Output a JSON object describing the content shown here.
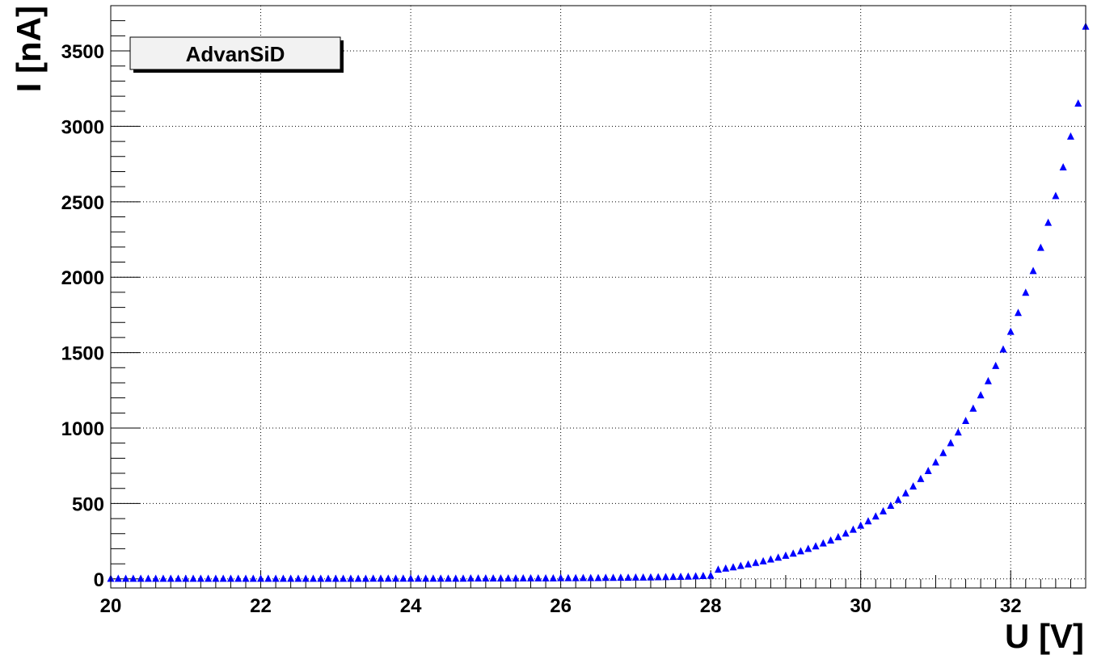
{
  "chart_data": {
    "type": "scatter",
    "xlabel": "U [V]",
    "ylabel": "I [nA]",
    "xlim": [
      20,
      33
    ],
    "ylim": [
      -60,
      3800
    ],
    "x_ticks": [
      20,
      22,
      24,
      26,
      28,
      30,
      32
    ],
    "y_ticks": [
      0,
      500,
      1000,
      1500,
      2000,
      2500,
      3000,
      3500
    ],
    "grid": true,
    "legend": {
      "position": "top-left",
      "entries": [
        "AdvanSiD"
      ]
    },
    "marker_color": "#0000ff",
    "series": [
      {
        "name": "AdvanSiD",
        "marker": "triangle",
        "x": [
          20.0,
          20.1,
          20.2,
          20.3,
          20.4,
          20.5,
          20.6,
          20.7,
          20.8,
          20.9,
          21.0,
          21.1,
          21.2,
          21.3,
          21.4,
          21.5,
          21.6,
          21.7,
          21.8,
          21.9,
          22.0,
          22.1,
          22.2,
          22.3,
          22.4,
          22.5,
          22.6,
          22.7,
          22.8,
          22.9,
          23.0,
          23.1,
          23.2,
          23.3,
          23.4,
          23.5,
          23.6,
          23.7,
          23.8,
          23.9,
          24.0,
          24.1,
          24.2,
          24.3,
          24.4,
          24.5,
          24.6,
          24.7,
          24.8,
          24.9,
          25.0,
          25.1,
          25.2,
          25.3,
          25.4,
          25.5,
          25.6,
          25.7,
          25.8,
          25.9,
          26.0,
          26.1,
          26.2,
          26.3,
          26.4,
          26.5,
          26.6,
          26.7,
          26.8,
          26.9,
          27.0,
          27.1,
          27.2,
          27.3,
          27.4,
          27.5,
          27.6,
          27.7,
          27.8,
          27.9,
          28.0,
          28.1,
          28.2,
          28.3,
          28.4,
          28.5,
          28.6,
          28.7,
          28.8,
          28.9,
          29.0,
          29.1,
          29.2,
          29.3,
          29.4,
          29.5,
          29.6,
          29.7,
          29.8,
          29.9,
          30.0,
          30.1,
          30.2,
          30.3,
          30.4,
          30.5,
          30.6,
          30.7,
          30.8,
          30.9,
          31.0,
          31.1,
          31.2,
          31.3,
          31.4,
          31.5,
          31.6,
          31.7,
          31.8,
          31.9,
          32.0,
          32.1,
          32.2,
          32.3,
          32.4,
          32.5,
          32.6,
          32.7,
          32.8,
          32.9,
          33.0
        ],
        "y": [
          0,
          0,
          0,
          0,
          0,
          0,
          0,
          0,
          0,
          0,
          0,
          0,
          0,
          0,
          0,
          0,
          0,
          0,
          0,
          0,
          0,
          0,
          0,
          0,
          0,
          0,
          0,
          0,
          0,
          0,
          0,
          0,
          0,
          0,
          0,
          1,
          1,
          1,
          1,
          1,
          1,
          1,
          1,
          1,
          1,
          1,
          1,
          1,
          2,
          2,
          2,
          2,
          2,
          2,
          2,
          3,
          3,
          3,
          3,
          3,
          4,
          4,
          4,
          5,
          5,
          5,
          6,
          6,
          7,
          7,
          8,
          8,
          9,
          10,
          11,
          12,
          13,
          14,
          16,
          18,
          20,
          60,
          68,
          76,
          85,
          95,
          105,
          116,
          128,
          140,
          153,
          167,
          182,
          198,
          215,
          234,
          254,
          276,
          300,
          325,
          352,
          381,
          413,
          447,
          484,
          523,
          566,
          612,
          661,
          714,
          771,
          833,
          899,
          970,
          1046,
          1128,
          1216,
          1310,
          1411,
          1520,
          1637,
          1762,
          1896,
          2040,
          2194,
          2360,
          2537,
          2727,
          2931,
          3150,
          3660
        ]
      }
    ]
  }
}
